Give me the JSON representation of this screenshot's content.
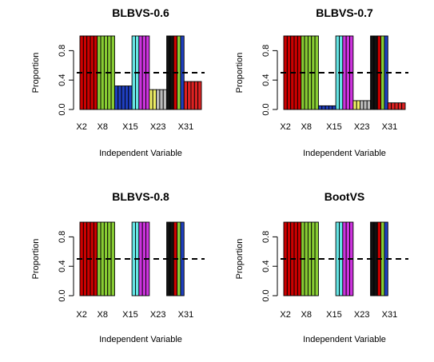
{
  "chart_data": [
    {
      "type": "bar",
      "title": "BLBVS-0.6",
      "xlabel": "Independent Variable",
      "ylabel": "Proportion",
      "ylim": [
        0,
        1
      ],
      "yticks": [
        "0.0",
        "0.4",
        "0.8"
      ],
      "xticks": [
        "X2",
        "X8",
        "X15",
        "X23",
        "X31"
      ],
      "threshold": 0.5,
      "values": [
        1,
        1,
        1,
        1,
        1,
        1,
        1,
        1,
        1,
        1,
        0.32,
        0.32,
        0.32,
        0.32,
        0.32,
        1,
        1,
        1,
        1,
        1,
        0.27,
        0.27,
        0.27,
        0.27,
        0.27,
        1,
        1,
        1,
        1,
        1,
        0.38,
        0.38,
        0.38,
        0.38,
        0.38
      ]
    },
    {
      "type": "bar",
      "title": "BLBVS-0.7",
      "xlabel": "Independent Variable",
      "ylabel": "Proportion",
      "ylim": [
        0,
        1
      ],
      "yticks": [
        "0.0",
        "0.4",
        "0.8"
      ],
      "xticks": [
        "X2",
        "X8",
        "X15",
        "X23",
        "X31"
      ],
      "threshold": 0.5,
      "values": [
        1,
        1,
        1,
        1,
        1,
        1,
        1,
        1,
        1,
        1,
        0.05,
        0.05,
        0.05,
        0.05,
        0.05,
        1,
        1,
        1,
        1,
        1,
        0.12,
        0.12,
        0.12,
        0.12,
        0.12,
        1,
        1,
        1,
        1,
        1,
        0.09,
        0.09,
        0.09,
        0.09,
        0.09
      ]
    },
    {
      "type": "bar",
      "title": "BLBVS-0.8",
      "xlabel": "Independent Variable",
      "ylabel": "Proportion",
      "ylim": [
        0,
        1
      ],
      "yticks": [
        "0.0",
        "0.4",
        "0.8"
      ],
      "xticks": [
        "X2",
        "X8",
        "X15",
        "X23",
        "X31"
      ],
      "threshold": 0.5,
      "values": [
        1,
        1,
        1,
        1,
        1,
        1,
        1,
        1,
        1,
        1,
        0,
        0,
        0,
        0,
        0,
        1,
        1,
        1,
        1,
        1,
        0,
        0,
        0,
        0,
        0,
        1,
        1,
        1,
        1,
        1,
        0,
        0,
        0,
        0,
        0
      ]
    },
    {
      "type": "bar",
      "title": "BootVS",
      "xlabel": "Independent Variable",
      "ylabel": "Proportion",
      "ylim": [
        0,
        1
      ],
      "yticks": [
        "0.0",
        "0.4",
        "0.8"
      ],
      "xticks": [
        "X2",
        "X8",
        "X15",
        "X23",
        "X31"
      ],
      "threshold": 0.5,
      "values": [
        1,
        1,
        1,
        1,
        1,
        1,
        1,
        1,
        1,
        1,
        0,
        0,
        0,
        0,
        0,
        1,
        1,
        1,
        1,
        1,
        0,
        0,
        0,
        0,
        0,
        1,
        1,
        1,
        1,
        1,
        0,
        0,
        0,
        0,
        0
      ]
    }
  ],
  "bar_colors": [
    "#cc0000",
    "#cc0000",
    "#cc0000",
    "#cc0000",
    "#cc0000",
    "#88cc33",
    "#88cc33",
    "#88cc33",
    "#88cc33",
    "#88cc33",
    "#1f3fbf",
    "#1f3fbf",
    "#1f3fbf",
    "#1f3fbf",
    "#1f3fbf",
    "#66e5e5",
    "#66e5e5",
    "#cc33dd",
    "#cc33dd",
    "#cc33dd",
    "#eeee66",
    "#eeee66",
    "#bbbbbb",
    "#bbbbbb",
    "#bbbbbb",
    "#111111",
    "#111111",
    "#cc0000",
    "#88cc33",
    "#1f3fbf",
    "#dd2222",
    "#dd2222",
    "#dd2222",
    "#dd2222",
    "#dd2222"
  ]
}
